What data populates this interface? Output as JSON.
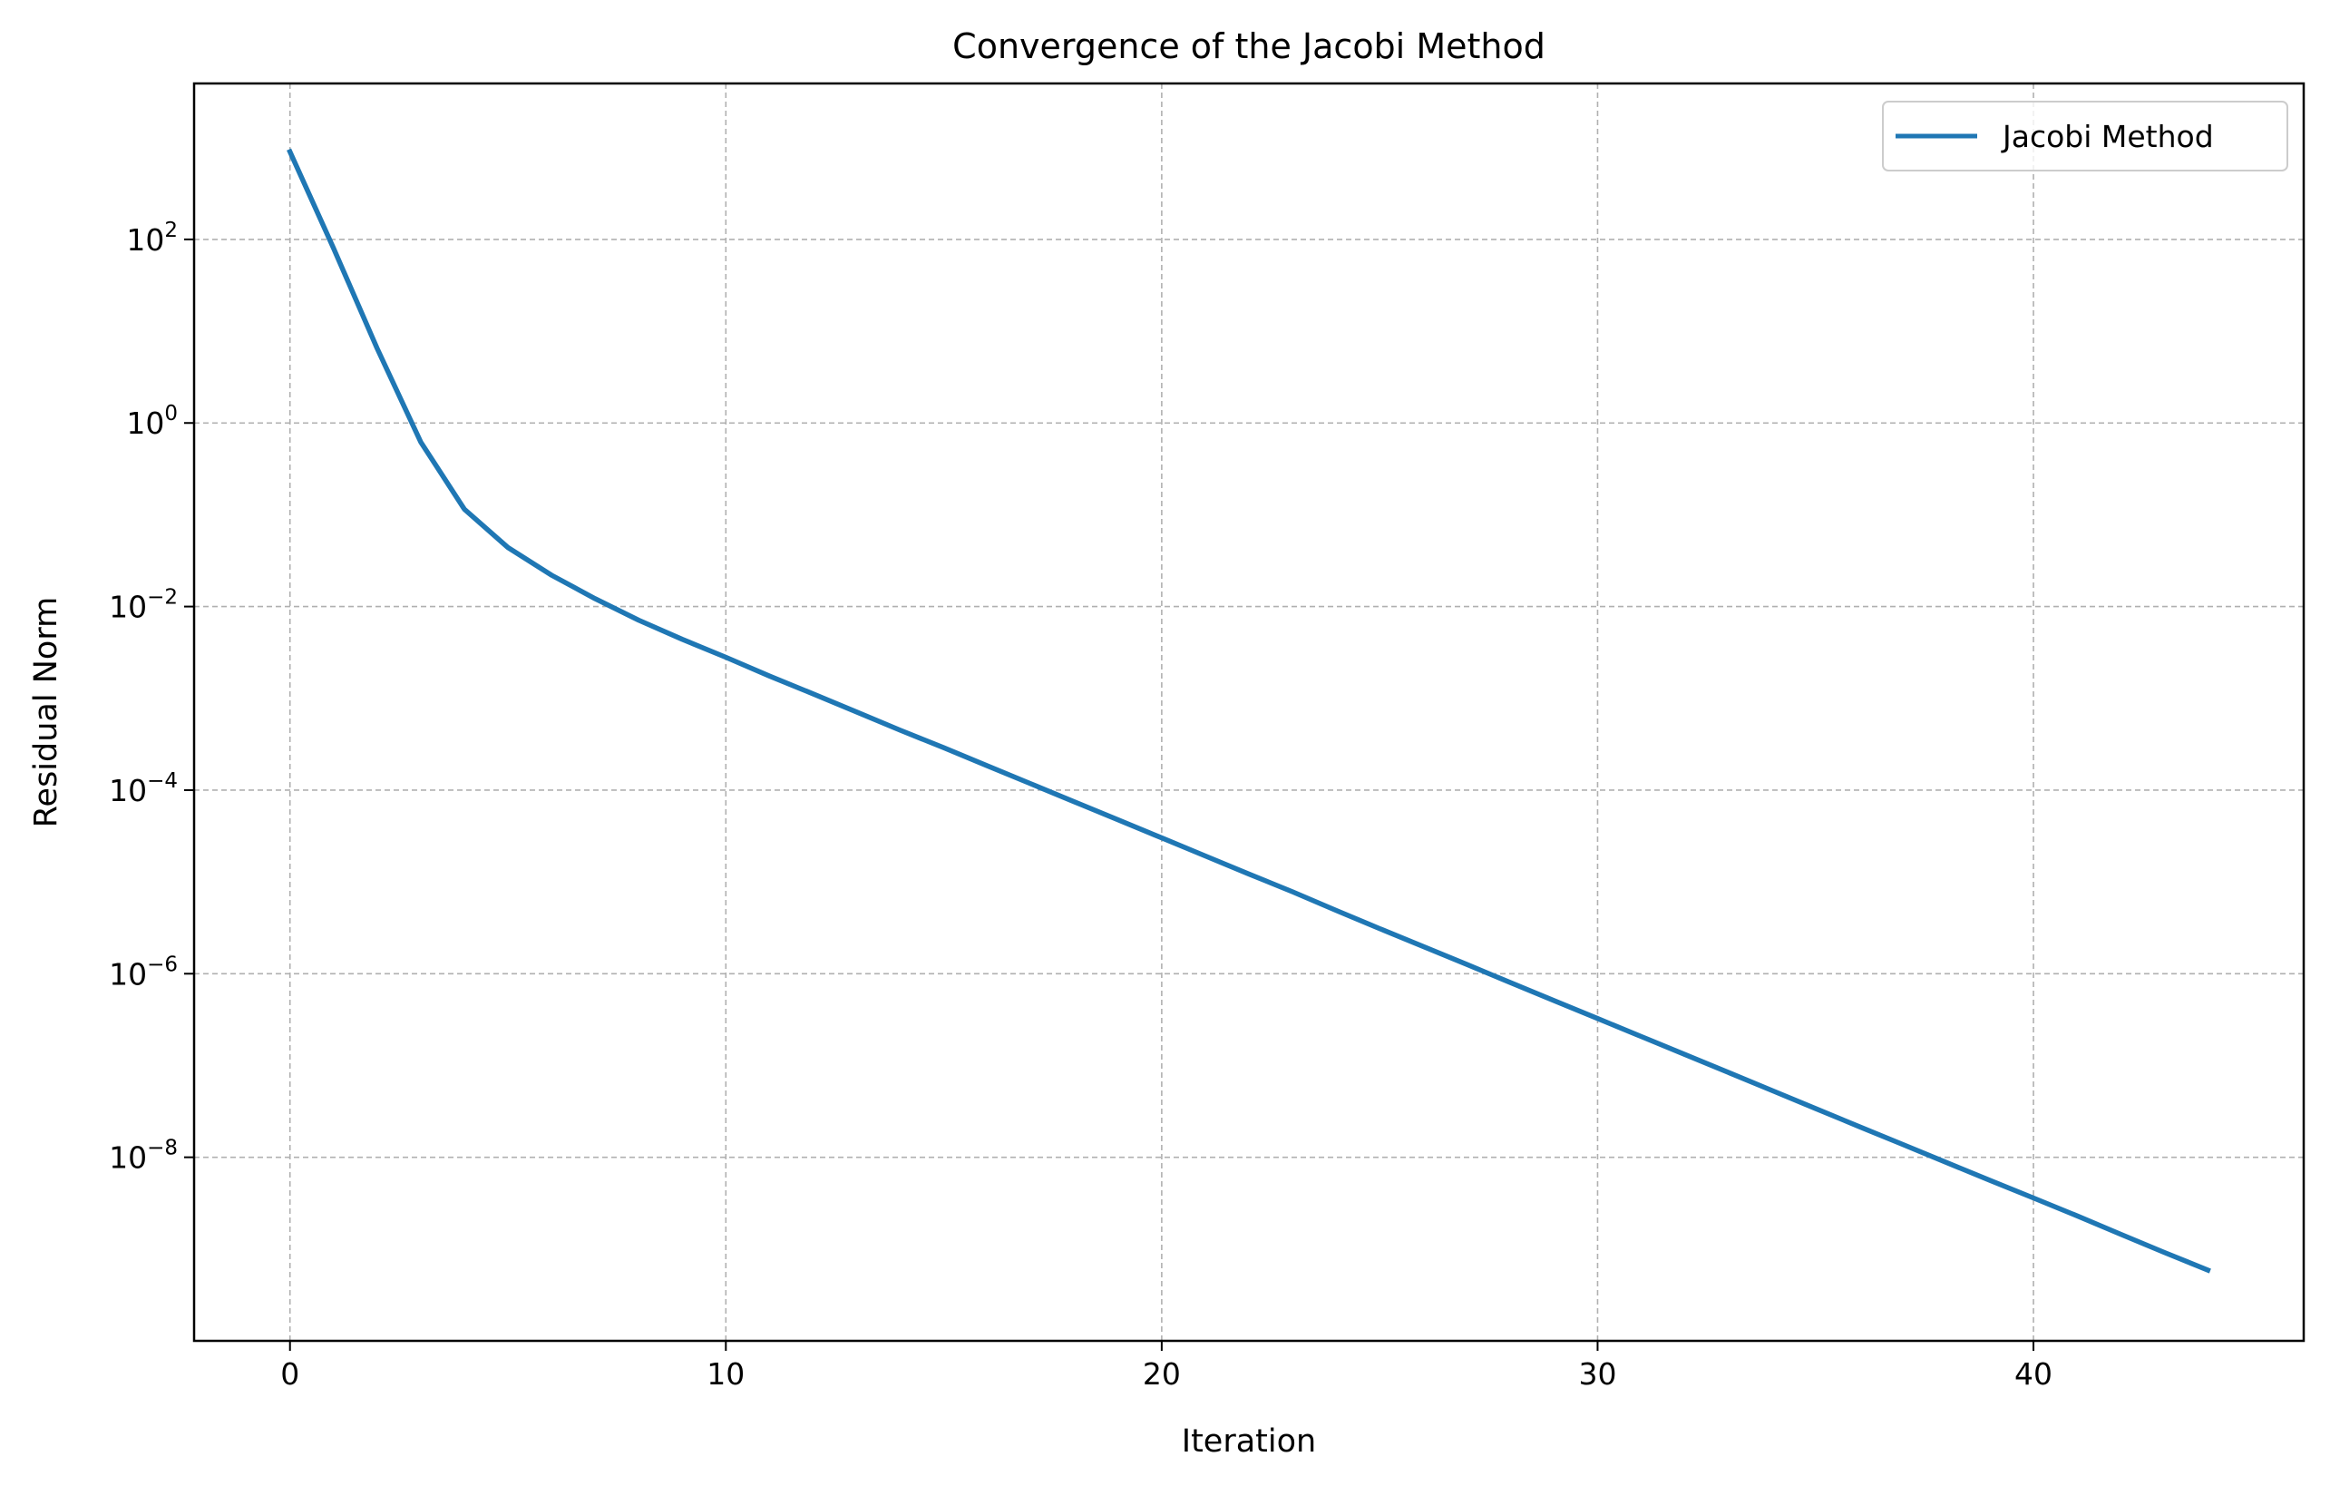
{
  "chart_data": {
    "type": "line",
    "title": "Convergence of the Jacobi Method",
    "xlabel": "Iteration",
    "ylabel": "Residual Norm",
    "yscale": "log",
    "xlim": [
      -2.2,
      46.2
    ],
    "ylim": [
      1e-10,
      5000
    ],
    "grid": true,
    "legend_position": "top-right",
    "x_ticks": [
      0,
      10,
      20,
      30,
      40
    ],
    "y_ticks": [
      {
        "value": 100.0,
        "base": "10",
        "exp": "2"
      },
      {
        "value": 1.0,
        "base": "10",
        "exp": "0"
      },
      {
        "value": 0.01,
        "base": "10",
        "exp": "−2"
      },
      {
        "value": 0.0001,
        "base": "10",
        "exp": "−4"
      },
      {
        "value": 1e-06,
        "base": "10",
        "exp": "−6"
      },
      {
        "value": 1e-08,
        "base": "10",
        "exp": "−8"
      }
    ],
    "series": [
      {
        "name": "Jacobi Method",
        "color": "#1f77b4",
        "x": [
          0,
          1,
          2,
          3,
          4,
          5,
          6,
          7,
          8,
          9,
          10,
          11,
          12,
          13,
          14,
          15,
          16,
          17,
          18,
          19,
          20,
          21,
          22,
          23,
          24,
          25,
          26,
          27,
          28,
          29,
          30,
          31,
          32,
          33,
          34,
          35,
          36,
          37,
          38,
          39,
          40,
          41,
          42,
          43,
          44
        ],
        "y": [
          900,
          80,
          6.5,
          0.62,
          0.115,
          0.044,
          0.022,
          0.0122,
          0.0071,
          0.0044,
          0.0028,
          0.00175,
          0.00112,
          0.00071,
          0.00045,
          0.00029,
          0.000184,
          0.000117,
          7.45e-05,
          4.75e-05,
          3.02e-05,
          1.92e-05,
          1.22e-05,
          7.8e-06,
          4.9e-06,
          3.1e-06,
          1.98e-06,
          1.26e-06,
          8e-07,
          5.1e-07,
          3.25e-07,
          2.07e-07,
          1.32e-07,
          8.4e-08,
          5.35e-08,
          3.4e-08,
          2.16e-08,
          1.38e-08,
          8.8e-09,
          5.6e-09,
          3.6e-09,
          2.3e-09,
          1.45e-09,
          9.2e-10,
          5.9e-10
        ]
      }
    ]
  }
}
